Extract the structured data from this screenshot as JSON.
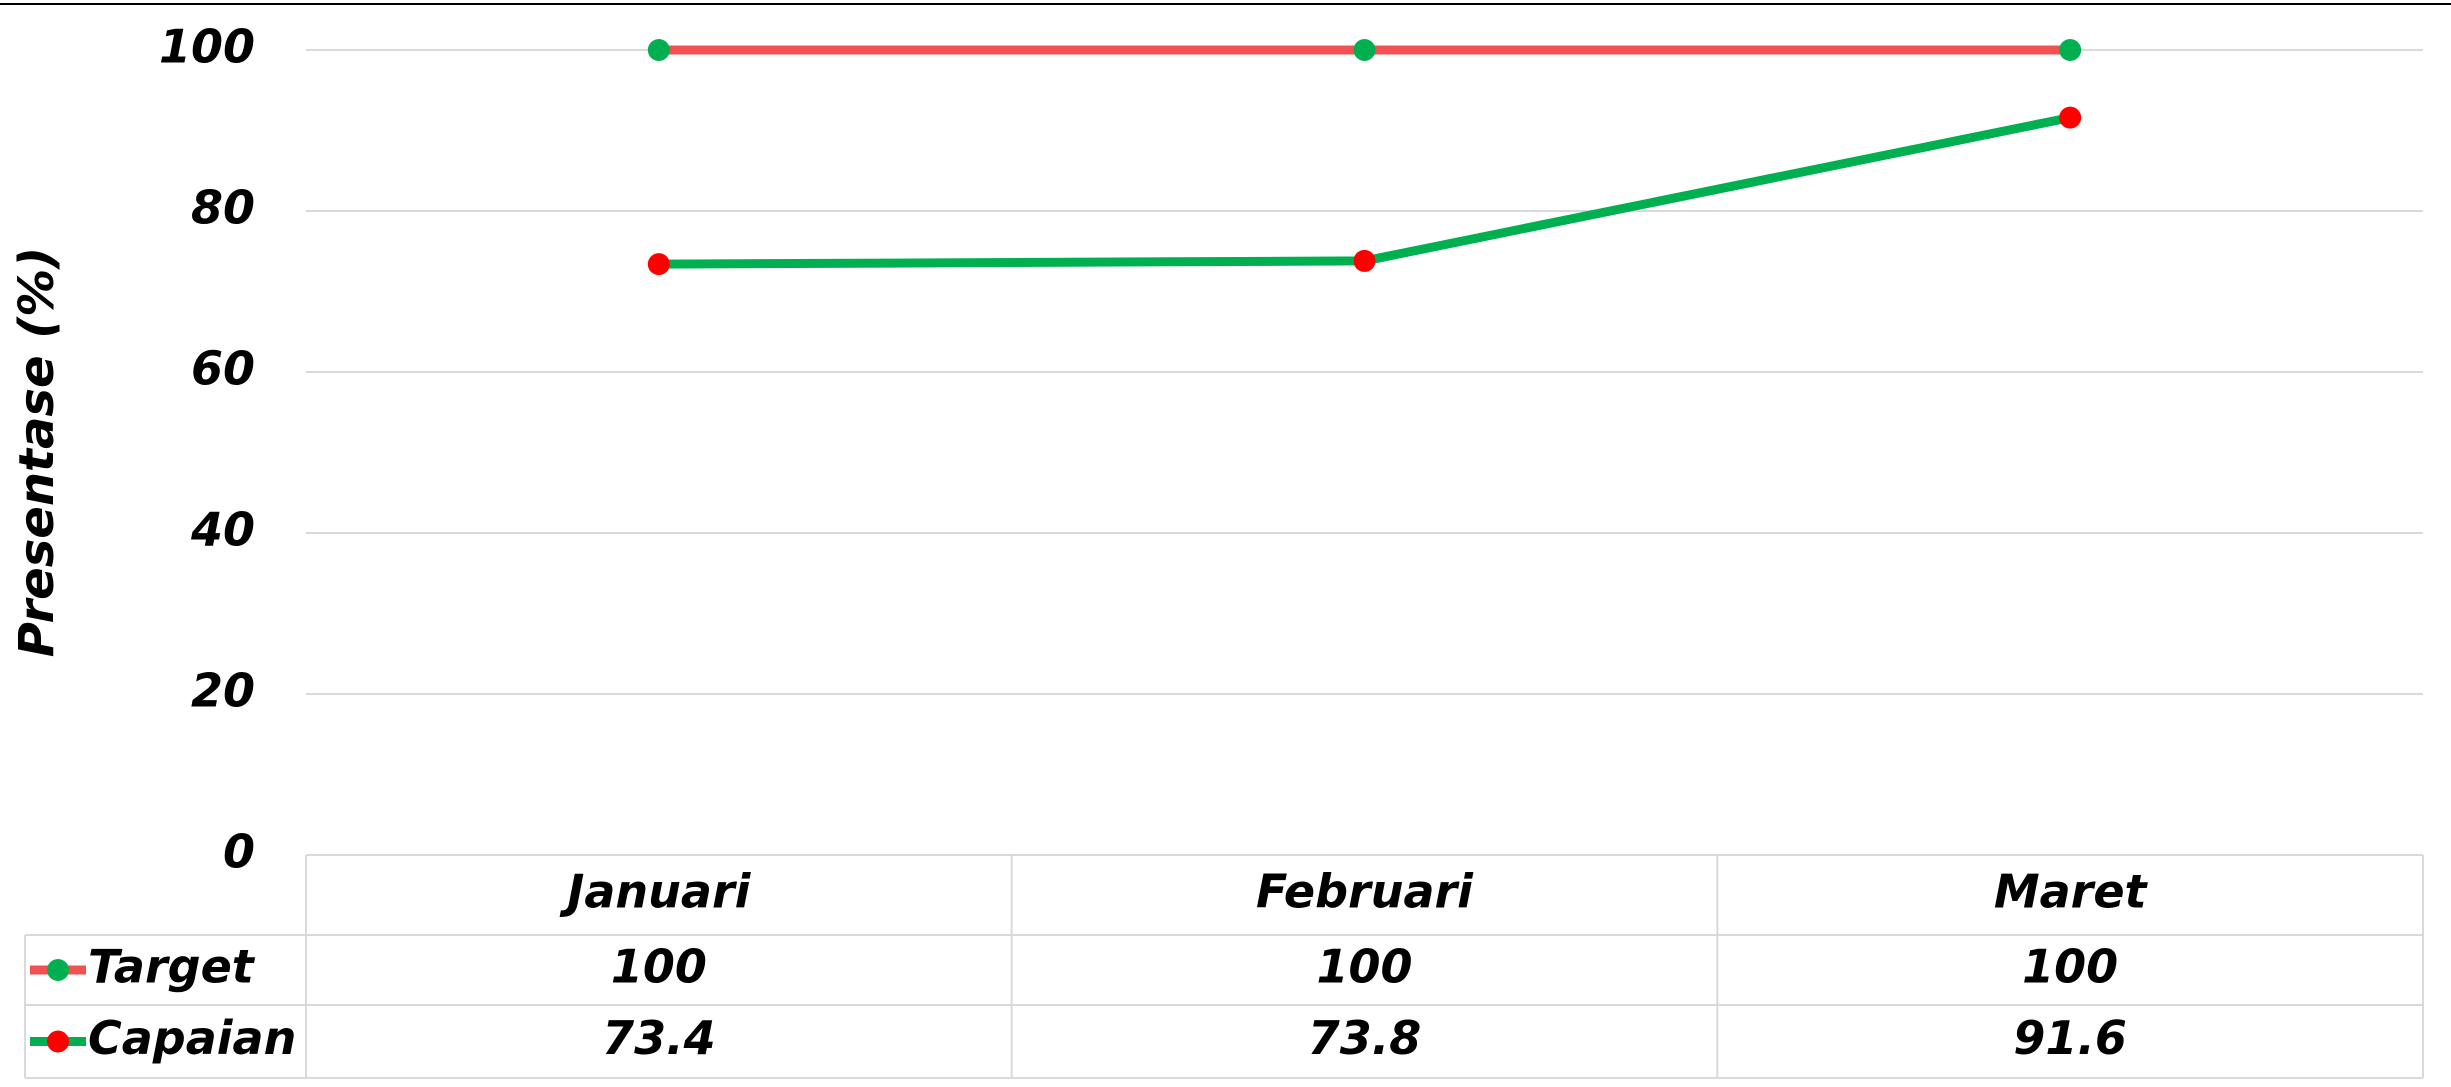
{
  "chart_data": {
    "type": "line",
    "y_label": "Presentase (%)",
    "categories": [
      "Januari",
      "Februari",
      "Maret"
    ],
    "series": [
      {
        "name": "Target",
        "color": "#f05252",
        "marker_color": "#00b050",
        "values": [
          100,
          100,
          100
        ]
      },
      {
        "name": "Capaian",
        "color": "#00b050",
        "marker_color": "#ff0000",
        "values": [
          73.4,
          73.8,
          91.6
        ]
      }
    ],
    "ylim": [
      0,
      100
    ],
    "yticks": [
      0,
      20,
      40,
      60,
      80,
      100
    ],
    "grid": true,
    "data_table": true
  }
}
